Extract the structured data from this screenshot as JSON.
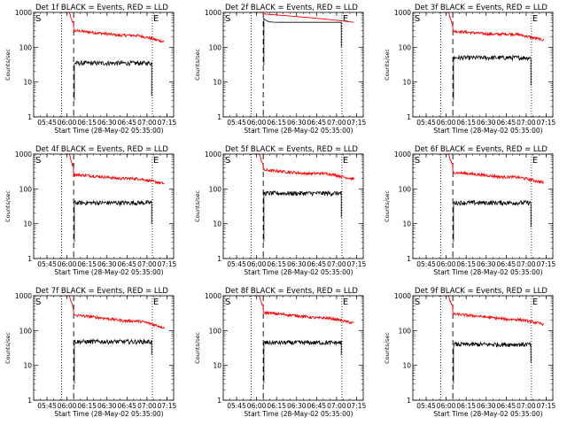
{
  "chart_data": {
    "type": "line",
    "xlabel_common": "Start Time (28-May-02 05:35:00)",
    "ylabel_common": "Counts/sec",
    "x_tick_labels": [
      "05:45",
      "06:00",
      "06:15",
      "06:30",
      "06:45",
      "07:00",
      "07:15"
    ],
    "x_ticks_minutes_from_start": [
      10,
      25,
      40,
      55,
      70,
      85,
      100
    ],
    "y_scale": "log",
    "y_range": [
      1,
      1000
    ],
    "y_tick_labels": [
      "1",
      "10",
      "100",
      "1000"
    ],
    "marker_labels": [
      "S",
      "E"
    ],
    "legend_text": "BLACK = Events, RED = LLD",
    "colors": {
      "events": "#000000",
      "lld": "#ff0000"
    },
    "panels": [
      {
        "title": "Det 1f BLACK = Events, RED = LLD",
        "dotted": [
          21,
          89
        ],
        "dashed": 30,
        "lld_start": 300,
        "lld_end": 140,
        "lld_bump": 220,
        "ev_level": 35,
        "ev_end": 4
      },
      {
        "title": "Det 2f BLACK = Events, RED = LLD",
        "dotted": [
          21,
          89
        ],
        "dashed": 30,
        "lld_start": 900,
        "lld_end": 520,
        "lld_bump": 540,
        "ev_level": 520,
        "ev_end": 100,
        "overlap": true
      },
      {
        "title": "Det 3f BLACK = Events, RED = LLD",
        "dotted": [
          21,
          89
        ],
        "dashed": 30,
        "lld_start": 290,
        "lld_end": 160,
        "lld_bump": 240,
        "ev_level": 50,
        "ev_end": 8
      },
      {
        "title": "Det 4f BLACK = Events, RED = LLD",
        "dotted": [
          21,
          89
        ],
        "dashed": 30,
        "lld_start": 260,
        "lld_end": 140,
        "lld_bump": 200,
        "ev_level": 40,
        "ev_end": 10
      },
      {
        "title": "Det 5f BLACK = Events, RED = LLD",
        "dotted": [
          21,
          89
        ],
        "dashed": 30,
        "lld_start": 350,
        "lld_end": 190,
        "lld_bump": 280,
        "ev_level": 75,
        "ev_end": 15
      },
      {
        "title": "Det 6f BLACK = Events, RED = LLD",
        "dotted": [
          21,
          89
        ],
        "dashed": 30,
        "lld_start": 300,
        "lld_end": 150,
        "lld_bump": 220,
        "ev_level": 40,
        "ev_end": 8
      },
      {
        "title": "Det 7f BLACK = Events, RED = LLD",
        "dotted": [
          21,
          89
        ],
        "dashed": 30,
        "lld_start": 280,
        "lld_end": 120,
        "lld_bump": 190,
        "ev_level": 48,
        "ev_end": 20
      },
      {
        "title": "Det 8f BLACK = Events, RED = LLD",
        "dotted": [
          21,
          89
        ],
        "dashed": 30,
        "lld_start": 330,
        "lld_end": 160,
        "lld_bump": 230,
        "ev_level": 45,
        "ev_end": 20
      },
      {
        "title": "Det 9f BLACK = Events, RED = LLD",
        "dotted": [
          21,
          89
        ],
        "dashed": 30,
        "lld_start": 300,
        "lld_end": 150,
        "lld_bump": 210,
        "ev_level": 40,
        "ev_end": 12
      }
    ]
  }
}
